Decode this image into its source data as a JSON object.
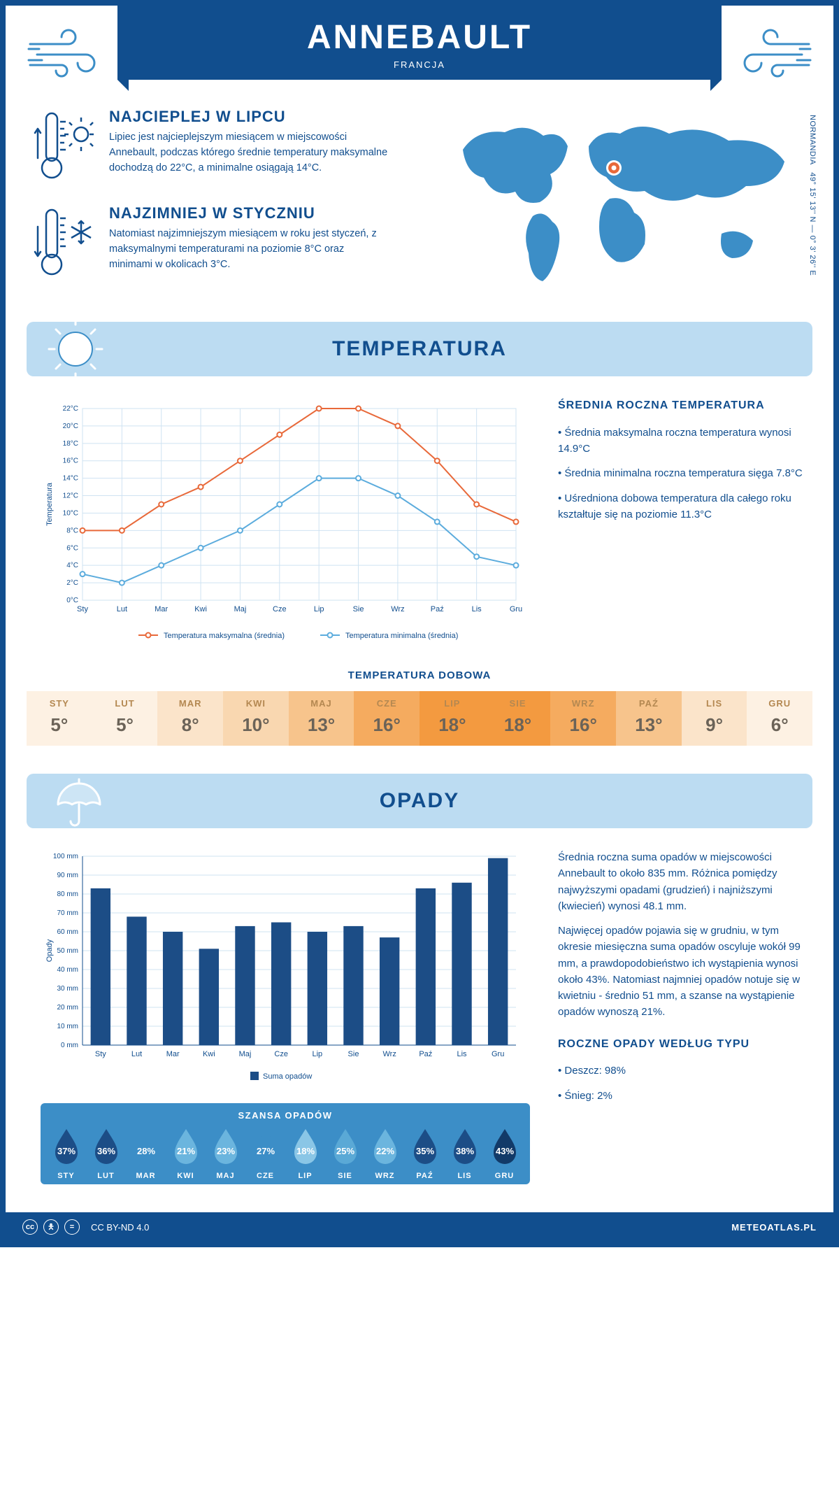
{
  "header": {
    "city": "ANNEBAULT",
    "country": "FRANCJA"
  },
  "coords": {
    "region": "NORMANDIA",
    "lat": "49° 15' 13'' N",
    "lon": "0° 3' 26'' E"
  },
  "warmest": {
    "title": "NAJCIEPLEJ W LIPCU",
    "text": "Lipiec jest najcieplejszym miesiącem w miejscowości Annebault, podczas którego średnie temperatury maksymalne dochodzą do 22°C, a minimalne osiągają 14°C."
  },
  "coldest": {
    "title": "NAJZIMNIEJ W STYCZNIU",
    "text": "Natomiast najzimniejszym miesiącem w roku jest styczeń, z maksymalnymi temperaturami na poziomie 8°C oraz minimami w okolicach 3°C."
  },
  "section_temp": "TEMPERATURA",
  "section_precip": "OPADY",
  "temp_chart": {
    "type": "line",
    "months": [
      "Sty",
      "Lut",
      "Mar",
      "Kwi",
      "Maj",
      "Cze",
      "Lip",
      "Sie",
      "Wrz",
      "Paź",
      "Lis",
      "Gru"
    ],
    "y_label": "Temperatura",
    "y_ticks": [
      "0°C",
      "2°C",
      "4°C",
      "6°C",
      "8°C",
      "10°C",
      "12°C",
      "14°C",
      "16°C",
      "18°C",
      "20°C",
      "22°C"
    ],
    "ylim": [
      0,
      22
    ],
    "series_max": {
      "label": "Temperatura maksymalna (średnia)",
      "color": "#e8693a",
      "values": [
        8,
        8,
        11,
        13,
        16,
        19,
        22,
        22,
        20,
        16,
        11,
        9
      ]
    },
    "series_min": {
      "label": "Temperatura minimalna (średnia)",
      "color": "#5cacdd",
      "values": [
        3,
        2,
        4,
        6,
        8,
        11,
        14,
        14,
        12,
        9,
        5,
        4
      ]
    },
    "grid_color": "#cfe3f2",
    "background": "#ffffff",
    "marker": "circle",
    "line_width": 2
  },
  "temp_side": {
    "title": "ŚREDNIA ROCZNA TEMPERATURA",
    "b1": "• Średnia maksymalna roczna temperatura wynosi 14.9°C",
    "b2": "• Średnia minimalna roczna temperatura sięga 7.8°C",
    "b3": "• Uśredniona dobowa temperatura dla całego roku kształtuje się na poziomie 11.3°C"
  },
  "daily": {
    "title": "TEMPERATURA DOBOWA",
    "months": [
      "STY",
      "LUT",
      "MAR",
      "KWI",
      "MAJ",
      "CZE",
      "LIP",
      "SIE",
      "WRZ",
      "PAŹ",
      "LIS",
      "GRU"
    ],
    "values": [
      "5°",
      "5°",
      "8°",
      "10°",
      "13°",
      "16°",
      "18°",
      "18°",
      "16°",
      "13°",
      "9°",
      "6°"
    ],
    "colors": [
      "#fdf1e3",
      "#fdf1e3",
      "#fbe4ca",
      "#f9d7b0",
      "#f7c48c",
      "#f5ab5f",
      "#f39a40",
      "#f39a40",
      "#f5ab5f",
      "#f7c48c",
      "#fbe4ca",
      "#fdf1e3"
    ],
    "month_color": "#b48851",
    "value_color": "#6b6358"
  },
  "precip_chart": {
    "type": "bar",
    "months": [
      "Sty",
      "Lut",
      "Mar",
      "Kwi",
      "Maj",
      "Cze",
      "Lip",
      "Sie",
      "Wrz",
      "Paź",
      "Lis",
      "Gru"
    ],
    "y_label": "Opady",
    "y_ticks": [
      "0 mm",
      "10 mm",
      "20 mm",
      "30 mm",
      "40 mm",
      "50 mm",
      "60 mm",
      "70 mm",
      "80 mm",
      "90 mm",
      "100 mm"
    ],
    "ylim": [
      0,
      100
    ],
    "values": [
      83,
      68,
      60,
      51,
      63,
      65,
      60,
      63,
      57,
      83,
      86,
      99
    ],
    "bar_color": "#1c4d86",
    "grid_color": "#cfe3f2",
    "legend": "Suma opadów",
    "bar_width": 0.55
  },
  "precip_side": {
    "p1": "Średnia roczna suma opadów w miejscowości Annebault to około 835 mm. Różnica pomiędzy najwyższymi opadami (grudzień) i najniższymi (kwiecień) wynosi 48.1 mm.",
    "p2": "Najwięcej opadów pojawia się w grudniu, w tym okresie miesięczna suma opadów oscyluje wokół 99 mm, a prawdopodobieństwo ich wystąpienia wynosi około 43%. Natomiast najmniej opadów notuje się w kwietniu - średnio 51 mm, a szanse na wystąpienie opadów wynoszą 21%.",
    "type_title": "ROCZNE OPADY WEDŁUG TYPU",
    "type1": "• Deszcz: 98%",
    "type2": "• Śnieg: 2%"
  },
  "drops": {
    "title": "SZANSA OPADÓW",
    "months": [
      "STY",
      "LUT",
      "MAR",
      "KWI",
      "MAJ",
      "CZE",
      "LIP",
      "SIE",
      "WRZ",
      "PAŹ",
      "LIS",
      "GRU"
    ],
    "values": [
      "37%",
      "36%",
      "28%",
      "21%",
      "23%",
      "27%",
      "18%",
      "25%",
      "22%",
      "35%",
      "38%",
      "43%"
    ],
    "colors": [
      "#1c4d86",
      "#1c4d86",
      "#3c8ec7",
      "#6bb5de",
      "#6bb5de",
      "#3c8ec7",
      "#8ac6e6",
      "#5aa9d6",
      "#6bb5de",
      "#1c4d86",
      "#1c4d86",
      "#123a68"
    ],
    "text_color": "#ffffff"
  },
  "footer": {
    "license": "CC BY-ND 4.0",
    "site": "METEOATLAS.PL"
  }
}
